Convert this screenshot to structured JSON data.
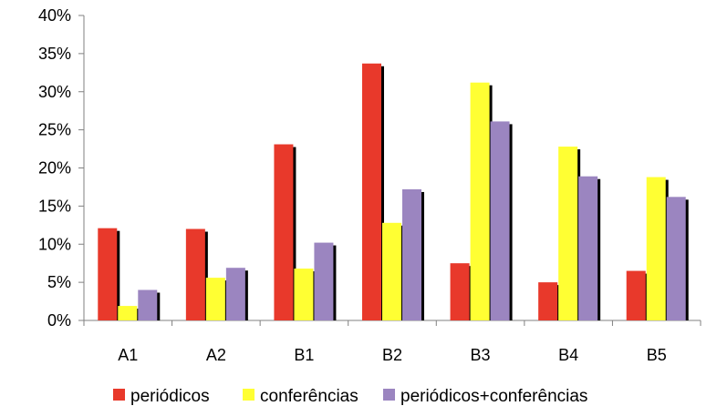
{
  "chart_data": {
    "type": "bar",
    "categories": [
      "A1",
      "A2",
      "B1",
      "B2",
      "B3",
      "B4",
      "B5"
    ],
    "series": [
      {
        "name": "periódicos",
        "color": "#e8392b",
        "values": [
          12.1,
          12.0,
          23.1,
          33.7,
          7.5,
          5.0,
          6.5
        ]
      },
      {
        "name": "conferências",
        "color": "#ffff33",
        "values": [
          1.9,
          5.6,
          6.8,
          12.8,
          31.2,
          22.8,
          18.8
        ]
      },
      {
        "name": "periódicos+conferências",
        "color": "#9b85c0",
        "values": [
          4.0,
          6.9,
          10.2,
          17.2,
          26.1,
          18.9,
          16.2
        ]
      }
    ],
    "ylim": [
      0,
      40
    ],
    "yticks": [
      0,
      5,
      10,
      15,
      20,
      25,
      30,
      35,
      40
    ],
    "ytick_labels": [
      "0%",
      "5%",
      "10%",
      "15%",
      "20%",
      "25%",
      "30%",
      "35%",
      "40%"
    ],
    "title": "",
    "xlabel": "",
    "ylabel": "",
    "grid": false,
    "legend_position": "bottom"
  }
}
